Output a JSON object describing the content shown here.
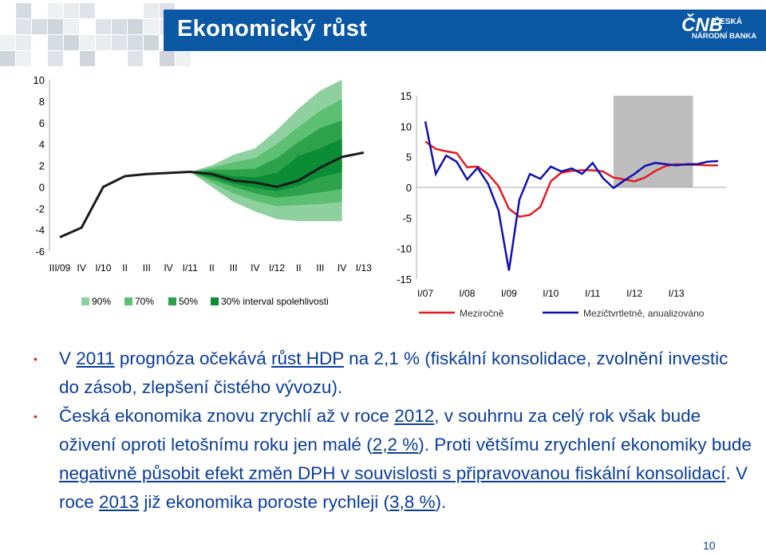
{
  "header": {
    "title": "Ekonomický růst",
    "logo": {
      "abbr": "ČNB",
      "line1": "ČESKÁ",
      "line2": "NÁRODNÍ BANKA"
    }
  },
  "left_chart": {
    "yticks": [
      "10",
      "8",
      "6",
      "4",
      "2",
      "0",
      "-2",
      "-4",
      "-6"
    ],
    "xticks": [
      "III/09",
      "IV",
      "I/10",
      "II",
      "III",
      "IV",
      "I/11",
      "II",
      "III",
      "IV",
      "I/12",
      "II",
      "III",
      "IV",
      "I/13"
    ],
    "legend": [
      "90%",
      "70%",
      "50%",
      "30% interval spolehlivosti"
    ],
    "colors": {
      "fan90": "#8fd19e",
      "fan70": "#5cbf72",
      "fan50": "#2da24a",
      "fan30": "#0b8d36",
      "line": "#1a1a1a"
    }
  },
  "right_chart": {
    "yticks": [
      "15",
      "10",
      "5",
      "0",
      "-5",
      "-10",
      "-15"
    ],
    "xticks": [
      "I/07",
      "I/08",
      "I/09",
      "I/10",
      "I/11",
      "I/12",
      "I/13"
    ],
    "legend": [
      "Meziročně",
      "Mezičtvrtletně, anualizováno"
    ],
    "colors": {
      "yoy": "#e21b23",
      "qoq": "#1010b0",
      "shade": "#bdbdbd"
    }
  },
  "chart_data": [
    {
      "type": "area",
      "title": "",
      "categories": [
        "III/09",
        "IV",
        "I/10",
        "II",
        "III",
        "IV",
        "I/11",
        "II",
        "III",
        "IV",
        "I/12",
        "II",
        "III",
        "IV",
        "I/13"
      ],
      "ylim": [
        -6,
        10
      ],
      "series": [
        {
          "name": "",
          "values": [
            -4.7,
            -3.8,
            0.0,
            1.0,
            1.2,
            1.3,
            1.4,
            1.2,
            0.6,
            0.4,
            0.0,
            0.6,
            1.8,
            2.8,
            3.2
          ]
        },
        {
          "name": "90%",
          "lower": [
            1.4,
            0.0,
            -1.4,
            -2.3,
            -3.0,
            -3.2,
            -3.2,
            -3.2
          ],
          "upper": [
            1.4,
            2.0,
            3.0,
            3.6,
            5.3,
            7.3,
            9.0,
            10.0
          ]
        },
        {
          "name": "70%",
          "lower": [
            1.4,
            0.4,
            -0.6,
            -1.3,
            -1.8,
            -1.7,
            -1.6,
            -1.4
          ],
          "upper": [
            1.4,
            1.8,
            2.3,
            2.7,
            4.0,
            5.6,
            7.1,
            8.2
          ]
        },
        {
          "name": "50%",
          "lower": [
            1.4,
            0.7,
            0.0,
            -0.6,
            -1.0,
            -0.8,
            -0.5,
            -0.2
          ],
          "upper": [
            1.4,
            1.6,
            1.6,
            1.7,
            2.7,
            4.2,
            5.5,
            6.2
          ]
        },
        {
          "name": "30% interval spolehlivosti",
          "lower": [
            1.4,
            0.9,
            0.3,
            -0.1,
            -0.4,
            0.1,
            0.9,
            1.4
          ],
          "upper": [
            1.4,
            1.4,
            1.0,
            0.9,
            1.3,
            2.9,
            3.6,
            4.5
          ]
        }
      ]
    },
    {
      "type": "line",
      "title": "",
      "xticks": [
        "I/07",
        "I/08",
        "I/09",
        "I/10",
        "I/11",
        "I/12",
        "I/13"
      ],
      "ylim": [
        -15,
        15
      ],
      "x": [
        0,
        0.25,
        0.5,
        0.75,
        1,
        1.25,
        1.5,
        1.75,
        2,
        2.25,
        2.5,
        2.75,
        3,
        3.25,
        3.5,
        3.75,
        4,
        4.25,
        4.5,
        4.75,
        5,
        5.25,
        5.5,
        5.75,
        6,
        6.25,
        6.5,
        6.75,
        7
      ],
      "series": [
        {
          "name": "Meziročně",
          "values": [
            7.5,
            6.3,
            5.9,
            5.6,
            3.3,
            3.4,
            2.2,
            0.2,
            -3.5,
            -4.8,
            -4.5,
            -3.2,
            1.0,
            2.4,
            2.7,
            2.8,
            2.8,
            2.6,
            1.6,
            1.3,
            1.0,
            1.6,
            2.7,
            3.5,
            3.8,
            3.7,
            3.7,
            3.6,
            3.6
          ]
        },
        {
          "name": "Mezičtvrtletně, anualizováno",
          "values": [
            10.8,
            2.2,
            5.2,
            4.2,
            1.3,
            3.2,
            0.6,
            -3.8,
            -13.6,
            -2.0,
            2.2,
            1.4,
            3.4,
            2.6,
            3.1,
            2.2,
            4.0,
            1.5,
            -0.1,
            1.1,
            2.2,
            3.5,
            4.0,
            3.8,
            3.6,
            3.8,
            3.8,
            4.2,
            4.3
          ]
        }
      ],
      "shaded_region": {
        "from": 4.5,
        "to": 6.4
      }
    }
  ],
  "bullets": [
    [
      "V ",
      "2011",
      " prognóza očekává ",
      "růst HDP",
      " na 2,1 % (fiskální konsolidace, zvolnění investic do zásob, zlepšení čistého vývozu)."
    ],
    [
      "Česká ekonomika znovu zrychlí až v roce ",
      "2012",
      ", v souhrnu za celý rok však bude oživení oproti letošnímu roku jen malé (",
      "2,2 %",
      "). Proti většímu zrychlení ekonomiky bude ",
      "negativně působit efekt změn DPH v souvislosti s připravovanou fiskální konsolidací",
      ". V roce ",
      "2013",
      " již ekonomika poroste rychleji (",
      "3,8 %",
      ")."
    ]
  ],
  "page_number": "10"
}
